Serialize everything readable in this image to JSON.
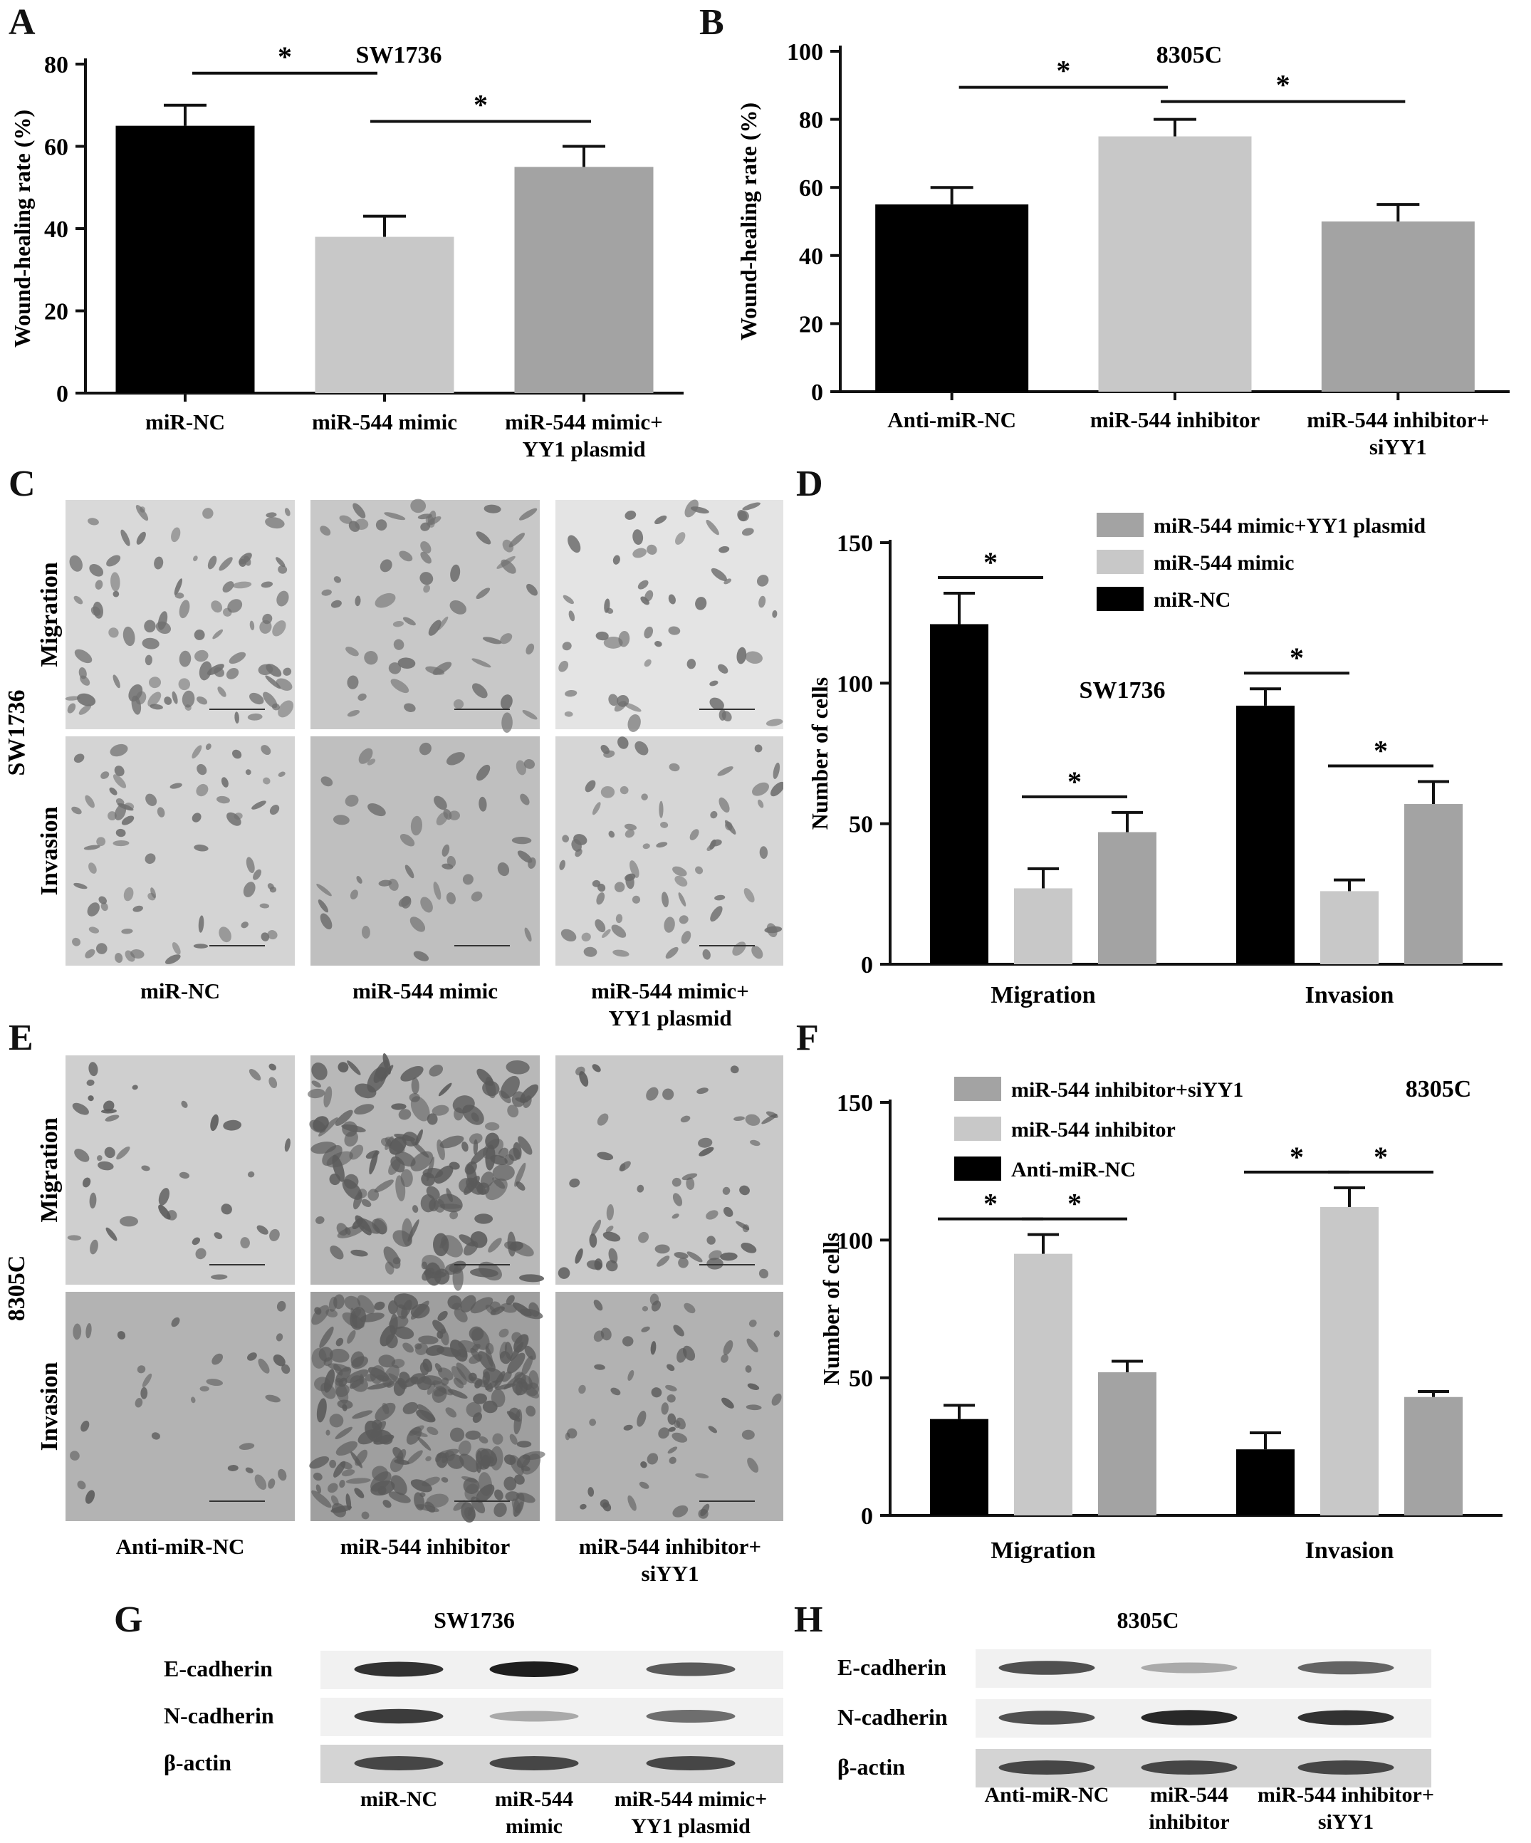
{
  "panels": {
    "A": {
      "letter": "A"
    },
    "B": {
      "letter": "B"
    },
    "C": {
      "letter": "C"
    },
    "D": {
      "letter": "D"
    },
    "E": {
      "letter": "E"
    },
    "F": {
      "letter": "F"
    },
    "G": {
      "letter": "G"
    },
    "H": {
      "letter": "H"
    }
  },
  "chart_data": [
    {
      "panel": "A",
      "type": "bar",
      "title": "SW1736",
      "ylabel": "Wound-healing rate (%)",
      "categories": [
        "miR-NC",
        "miR-544 mimic",
        "miR-544 mimic+\nYY1 plasmid"
      ],
      "category_lines": [
        [
          "miR-NC"
        ],
        [
          "miR-544 mimic"
        ],
        [
          "miR-544 mimic+",
          "YY1 plasmid"
        ]
      ],
      "values": [
        65,
        38,
        55
      ],
      "errors": [
        5,
        5,
        5
      ],
      "colors": [
        "#000000",
        "#c8c8c8",
        "#a3a3a3"
      ],
      "ylim": [
        0,
        80
      ],
      "yticks": [
        0,
        20,
        40,
        60,
        80
      ],
      "significance": [
        {
          "from": 0,
          "to": 1,
          "label": "*"
        },
        {
          "from": 1,
          "to": 2,
          "label": "*"
        }
      ]
    },
    {
      "panel": "B",
      "type": "bar",
      "title": "8305C",
      "ylabel": "Wound-healing rate (%)",
      "categories": [
        "Anti-miR-NC",
        "miR-544 inhibitor",
        "miR-544 inhibitor+\nsiYY1"
      ],
      "category_lines": [
        [
          "Anti-miR-NC"
        ],
        [
          "miR-544 inhibitor"
        ],
        [
          "miR-544 inhibitor+",
          "siYY1"
        ]
      ],
      "values": [
        55,
        75,
        50
      ],
      "errors": [
        5,
        5,
        5
      ],
      "colors": [
        "#000000",
        "#c8c8c8",
        "#a3a3a3"
      ],
      "ylim": [
        0,
        100
      ],
      "yticks": [
        0,
        20,
        40,
        60,
        80,
        100
      ],
      "significance": [
        {
          "from": 0,
          "to": 1,
          "label": "*"
        },
        {
          "from": 1,
          "to": 2,
          "label": "*"
        }
      ]
    },
    {
      "panel": "D",
      "type": "bar",
      "title": "SW1736",
      "ylabel": "Number of cells",
      "categories": [
        "Migration",
        "Invasion"
      ],
      "series": [
        {
          "name": "miR-NC",
          "values": [
            121,
            92
          ],
          "errors": [
            11,
            6
          ],
          "color": "#000000"
        },
        {
          "name": "miR-544 mimic",
          "values": [
            27,
            26
          ],
          "errors": [
            7,
            4
          ],
          "color": "#c8c8c8"
        },
        {
          "name": "miR-544 mimic+YY1 plasmid",
          "values": [
            47,
            57
          ],
          "errors": [
            7,
            8
          ],
          "color": "#a3a3a3"
        }
      ],
      "legend_order": [
        "miR-544 mimic+YY1 plasmid",
        "miR-544 mimic",
        "miR-NC"
      ],
      "legend": "top-right",
      "ylim": [
        0,
        150
      ],
      "yticks": [
        0,
        50,
        100,
        150
      ],
      "significance": [
        {
          "group": 0,
          "from": 0,
          "to": 1,
          "label": "*"
        },
        {
          "group": 0,
          "from": 1,
          "to": 2,
          "label": "*"
        },
        {
          "group": 1,
          "from": 0,
          "to": 1,
          "label": "*"
        },
        {
          "group": 1,
          "from": 1,
          "to": 2,
          "label": "*"
        }
      ]
    },
    {
      "panel": "F",
      "type": "bar",
      "title": "8305C",
      "ylabel": "Number of cells",
      "categories": [
        "Migration",
        "Invasion"
      ],
      "series": [
        {
          "name": "Anti-miR-NC",
          "values": [
            35,
            24
          ],
          "errors": [
            5,
            6
          ],
          "color": "#000000"
        },
        {
          "name": "miR-544 inhibitor",
          "values": [
            95,
            112
          ],
          "errors": [
            7,
            7
          ],
          "color": "#c8c8c8"
        },
        {
          "name": "miR-544 inhibitor+siYY1",
          "values": [
            52,
            43
          ],
          "errors": [
            4,
            2
          ],
          "color": "#a3a3a3"
        }
      ],
      "legend_order": [
        "miR-544 inhibitor+siYY1",
        "miR-544 inhibitor",
        "Anti-miR-NC"
      ],
      "legend": "top-left",
      "ylim": [
        0,
        150
      ],
      "yticks": [
        0,
        50,
        100,
        150
      ],
      "significance": [
        {
          "group": 0,
          "from": 0,
          "to": 1,
          "label": "*"
        },
        {
          "group": 0,
          "from": 1,
          "to": 2,
          "label": "*"
        },
        {
          "group": 1,
          "from": 0,
          "to": 1,
          "label": "*"
        },
        {
          "group": 1,
          "from": 1,
          "to": 2,
          "label": "*"
        }
      ]
    }
  ],
  "micrographs": {
    "C": {
      "cell_line": "SW1736",
      "rows": [
        "Migration",
        "Invasion"
      ],
      "cols": [
        [
          "miR-NC"
        ],
        [
          "miR-544 mimic"
        ],
        [
          "miR-544 mimic+",
          "YY1 plasmid"
        ]
      ]
    },
    "E": {
      "cell_line": "8305C",
      "rows": [
        "Migration",
        "Invasion"
      ],
      "cols": [
        [
          "Anti-miR-NC"
        ],
        [
          "miR-544 inhibitor"
        ],
        [
          "miR-544 inhibitor+",
          "siYY1"
        ]
      ]
    }
  },
  "blots": {
    "G": {
      "title": "SW1736",
      "rows": [
        {
          "label": "E-cadherin",
          "intensities": [
            0.9,
            1.0,
            0.7
          ]
        },
        {
          "label": "N-cadherin",
          "intensities": [
            0.85,
            0.3,
            0.6
          ]
        },
        {
          "label": "β-actin",
          "intensities": [
            0.8,
            0.8,
            0.8
          ]
        }
      ],
      "lanes": [
        [
          "miR-NC"
        ],
        [
          "miR-544",
          "mimic"
        ],
        [
          "miR-544 mimic+",
          "YY1 plasmid"
        ]
      ]
    },
    "H": {
      "title": "8305C",
      "rows": [
        {
          "label": "E-cadherin",
          "intensities": [
            0.75,
            0.3,
            0.65
          ]
        },
        {
          "label": "N-cadherin",
          "intensities": [
            0.75,
            0.95,
            0.9
          ]
        },
        {
          "label": "β-actin",
          "intensities": [
            0.8,
            0.8,
            0.8
          ]
        }
      ],
      "lanes": [
        [
          "Anti-miR-NC"
        ],
        [
          "miR-544",
          "inhibitor"
        ],
        [
          "miR-544 inhibitor+",
          "siYY1"
        ]
      ]
    }
  }
}
